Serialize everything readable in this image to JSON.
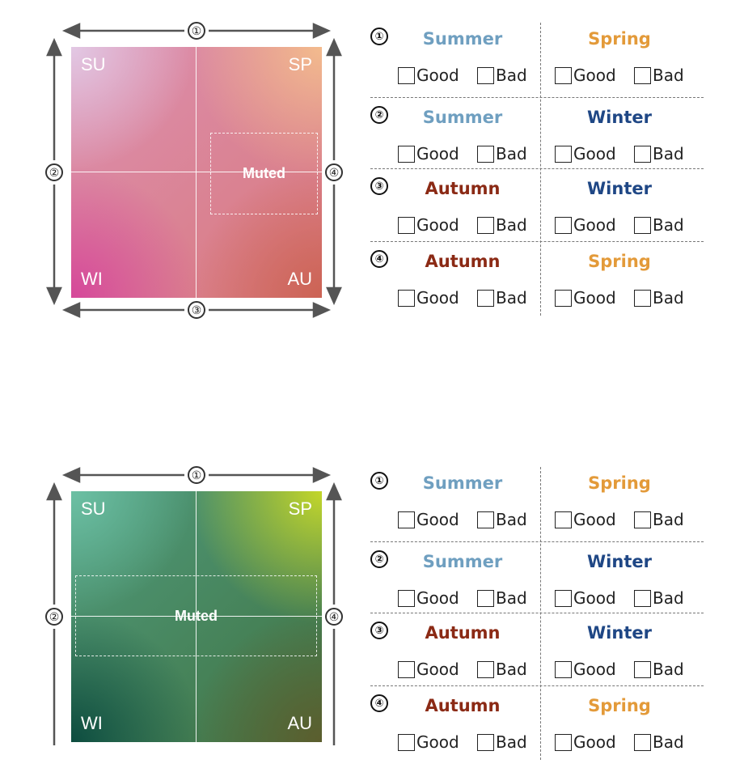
{
  "colors": {
    "summer": "#6f9fc0",
    "spring": "#e39a39",
    "winter": "#1f4785",
    "autumn": "#8b2a15",
    "arrow": "#555555"
  },
  "sections": [
    {
      "palette": "pink",
      "corners": {
        "tl": "SU",
        "tr": "SP",
        "bl": "WI",
        "br": "AU"
      },
      "muted_label": "Muted",
      "axis_markers": {
        "top": "①",
        "left": "②",
        "bottom": "③",
        "right": "④"
      },
      "rows": [
        {
          "num": "①",
          "left": {
            "name": "Summer",
            "kind": "summer"
          },
          "right": {
            "name": "Spring",
            "kind": "spring"
          }
        },
        {
          "num": "②",
          "left": {
            "name": "Summer",
            "kind": "summer"
          },
          "right": {
            "name": "Winter",
            "kind": "winter"
          }
        },
        {
          "num": "③",
          "left": {
            "name": "Autumn",
            "kind": "autumn"
          },
          "right": {
            "name": "Winter",
            "kind": "winter"
          }
        },
        {
          "num": "④",
          "left": {
            "name": "Autumn",
            "kind": "autumn"
          },
          "right": {
            "name": "Spring",
            "kind": "spring"
          }
        }
      ],
      "options": [
        "Good",
        "Bad"
      ]
    },
    {
      "palette": "green",
      "corners": {
        "tl": "SU",
        "tr": "SP",
        "bl": "WI",
        "br": "AU"
      },
      "muted_label": "Muted",
      "axis_markers": {
        "top": "①",
        "left": "②",
        "bottom": "",
        "right": "④"
      },
      "rows": [
        {
          "num": "①",
          "left": {
            "name": "Summer",
            "kind": "summer"
          },
          "right": {
            "name": "Spring",
            "kind": "spring"
          }
        },
        {
          "num": "②",
          "left": {
            "name": "Summer",
            "kind": "summer"
          },
          "right": {
            "name": "Winter",
            "kind": "winter"
          }
        },
        {
          "num": "③",
          "left": {
            "name": "Autumn",
            "kind": "autumn"
          },
          "right": {
            "name": "Winter",
            "kind": "winter"
          }
        },
        {
          "num": "④",
          "left": {
            "name": "Autumn",
            "kind": "autumn"
          },
          "right": {
            "name": "Spring",
            "kind": "spring"
          }
        }
      ],
      "options": [
        "Good",
        "Bad"
      ]
    }
  ]
}
